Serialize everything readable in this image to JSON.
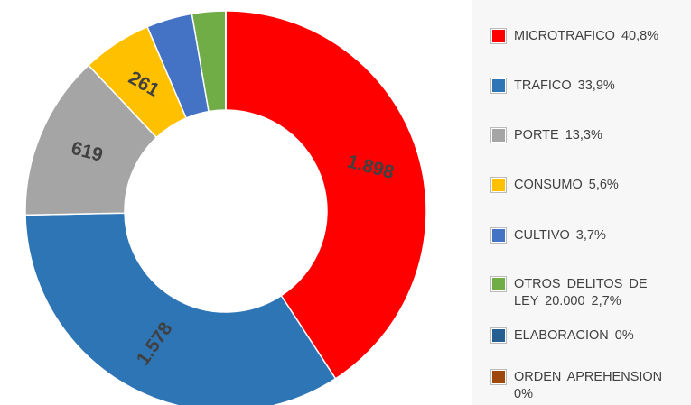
{
  "chart_data": {
    "type": "donut",
    "categories": [
      "MICROTRAFICO  40,8%",
      "TRAFICO  33,9%",
      "PORTE  13,3%",
      "CONSUMO  5,6%",
      "CULTIVO  3,7%",
      "OTROS DELITOS DE LEY 20.000  2,7%",
      "ELABORACION  0%",
      "ORDEN APREHENSION 0%"
    ],
    "values": [
      1898,
      1578,
      619,
      261,
      172,
      126,
      0,
      0
    ],
    "value_labels": [
      "1.898",
      "1.578",
      "619",
      "261",
      null,
      null,
      null,
      null
    ],
    "colors": [
      "#ff0000",
      "#2e75b6",
      "#a5a5a5",
      "#ffc000",
      "#4472c4",
      "#70ad47",
      "#255e91",
      "#9e480e"
    ]
  }
}
